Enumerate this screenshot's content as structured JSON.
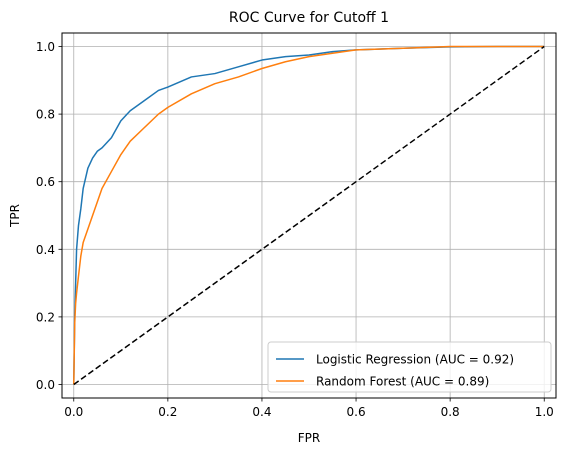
{
  "chart_data": {
    "type": "line",
    "title": "ROC Curve for Cutoff 1",
    "xlabel": "FPR",
    "ylabel": "TPR",
    "xlim": [
      -0.025,
      1.025
    ],
    "ylim": [
      -0.04,
      1.04
    ],
    "xticks": [
      0.0,
      0.2,
      0.4,
      0.6,
      0.8,
      1.0
    ],
    "yticks": [
      0.0,
      0.2,
      0.4,
      0.6,
      0.8,
      1.0
    ],
    "xtick_labels": [
      "0.0",
      "0.2",
      "0.4",
      "0.6",
      "0.8",
      "1.0"
    ],
    "ytick_labels": [
      "0.0",
      "0.2",
      "0.4",
      "0.6",
      "0.8",
      "1.0"
    ],
    "grid": true,
    "legend_position": "lower-right",
    "series": [
      {
        "name": "Logistic Regression (AUC = 0.92)",
        "color": "#1f77b4",
        "x": [
          0,
          0.002,
          0.004,
          0.006,
          0.01,
          0.015,
          0.02,
          0.03,
          0.04,
          0.05,
          0.06,
          0.08,
          0.1,
          0.12,
          0.15,
          0.18,
          0.2,
          0.25,
          0.3,
          0.35,
          0.4,
          0.45,
          0.5,
          0.55,
          0.6,
          0.7,
          0.8,
          0.9,
          1.0
        ],
        "y": [
          0,
          0.2,
          0.3,
          0.4,
          0.47,
          0.52,
          0.58,
          0.64,
          0.67,
          0.69,
          0.7,
          0.73,
          0.78,
          0.81,
          0.84,
          0.87,
          0.88,
          0.91,
          0.92,
          0.94,
          0.96,
          0.97,
          0.975,
          0.985,
          0.99,
          0.995,
          0.999,
          1.0,
          1.0
        ]
      },
      {
        "name": "Random Forest (AUC = 0.89)",
        "color": "#ff7f0e",
        "x": [
          0,
          0.002,
          0.004,
          0.006,
          0.01,
          0.015,
          0.02,
          0.03,
          0.04,
          0.05,
          0.06,
          0.08,
          0.1,
          0.12,
          0.15,
          0.18,
          0.2,
          0.25,
          0.3,
          0.35,
          0.4,
          0.45,
          0.5,
          0.55,
          0.6,
          0.7,
          0.8,
          0.9,
          1.0
        ],
        "y": [
          0,
          0.18,
          0.24,
          0.27,
          0.32,
          0.38,
          0.42,
          0.46,
          0.5,
          0.54,
          0.58,
          0.63,
          0.68,
          0.72,
          0.76,
          0.8,
          0.82,
          0.86,
          0.89,
          0.91,
          0.935,
          0.955,
          0.97,
          0.98,
          0.99,
          0.995,
          1.0,
          1.0,
          1.0
        ]
      },
      {
        "name": "",
        "color": "#000000",
        "dashed": true,
        "x": [
          0,
          1
        ],
        "y": [
          0,
          1
        ]
      }
    ]
  }
}
